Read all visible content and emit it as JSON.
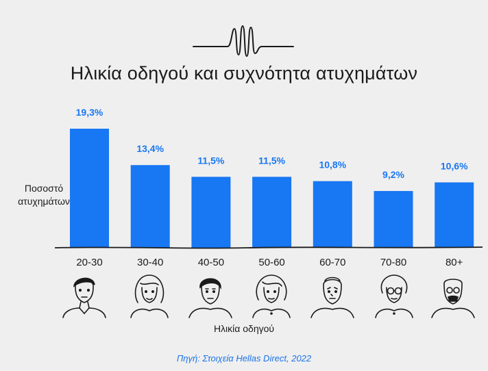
{
  "chart_data": {
    "type": "bar",
    "title": "Ηλικία οδηγού και συχνότητα ατυχημάτων",
    "ylabel": "Ποσοστό ατυχημάτων",
    "xlabel": "Ηλικία οδηγού",
    "categories": [
      "20-30",
      "30-40",
      "40-50",
      "50-60",
      "60-70",
      "70-80",
      "80+"
    ],
    "values": [
      19.3,
      13.4,
      11.5,
      11.5,
      10.8,
      9.2,
      10.6
    ],
    "value_labels": [
      "19,3%",
      "13,4%",
      "11,5%",
      "11,5%",
      "10,8%",
      "9,2%",
      "10,6%"
    ],
    "ylim": [
      0,
      20
    ],
    "grid": false,
    "bar_color": "#1877f2"
  },
  "source": "Πηγή: Στοιχεία Hellas Direct, 2022",
  "colors": {
    "accent": "#1877f2",
    "background": "#efefef",
    "ink": "#1a1a1a"
  },
  "icons": [
    "soundwave-logo-icon",
    "driver-face-icons"
  ]
}
